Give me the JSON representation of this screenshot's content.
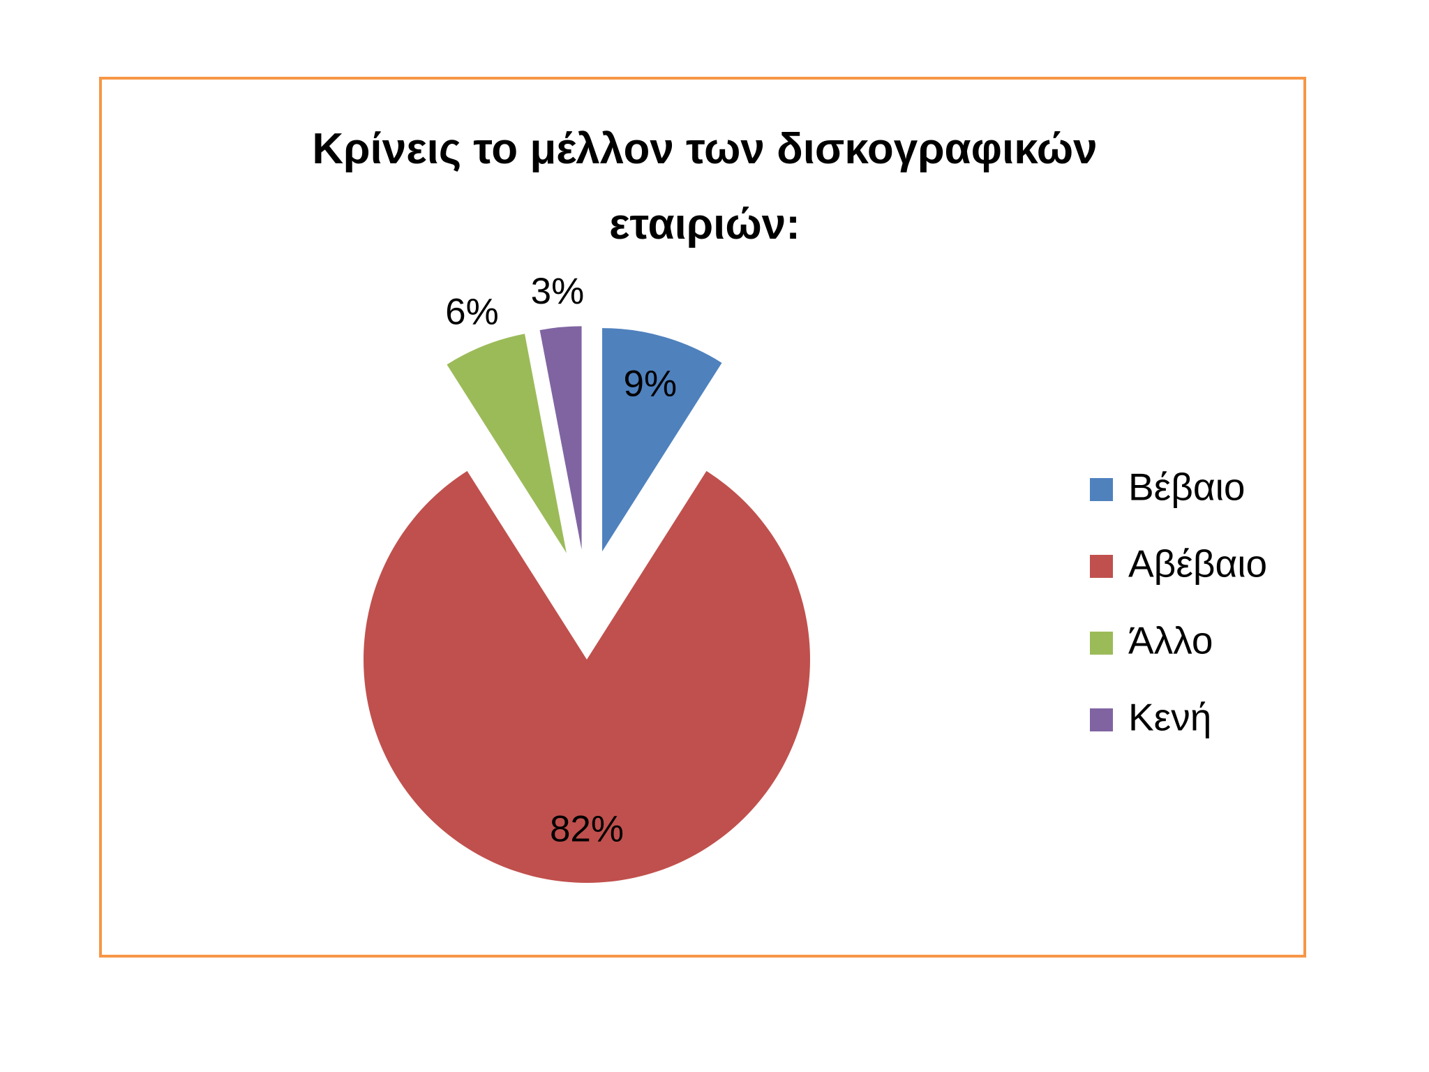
{
  "chart_data": {
    "type": "pie",
    "title": "Κρίνεις το μέλλον των δισκογραφικών εταιριών:",
    "categories": [
      "Βέβαιο",
      "Αβέβαιο",
      "Άλλο",
      "Κενή"
    ],
    "values": [
      9,
      82,
      6,
      3
    ],
    "value_labels": [
      "9%",
      "82%",
      "6%",
      "3%"
    ],
    "colors": [
      "#4f81bd",
      "#c0504d",
      "#9bbb59",
      "#8064a2"
    ],
    "legend": "right"
  }
}
